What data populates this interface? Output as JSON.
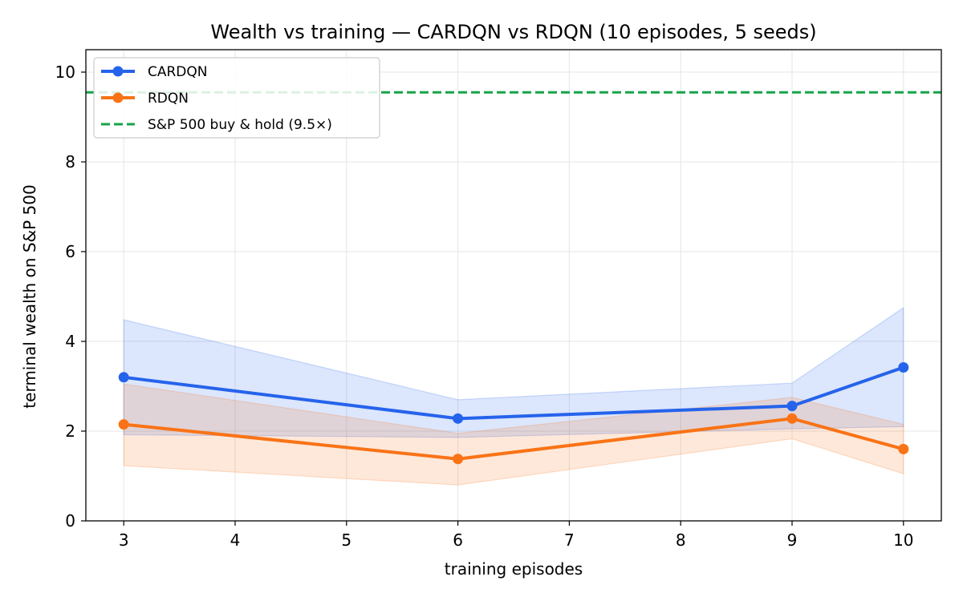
{
  "chart_data": {
    "type": "line",
    "title": "Wealth vs training — CARDQN vs RDQN (10 episodes, 5 seeds)",
    "xlabel": "training episodes",
    "ylabel": "terminal wealth on S&P 500",
    "xlim": [
      2.66,
      10.34
    ],
    "ylim": [
      0,
      10.5
    ],
    "xticks": [
      3,
      4,
      5,
      6,
      7,
      8,
      9,
      10
    ],
    "yticks": [
      0,
      2,
      4,
      6,
      8,
      10
    ],
    "grid": true,
    "legend_position": "top-left",
    "x": [
      3,
      6,
      9,
      10
    ],
    "series": [
      {
        "name": "CARDQN",
        "color": "#2563eb",
        "values": [
          3.2,
          2.28,
          2.56,
          3.42
        ],
        "band_low": [
          1.92,
          1.86,
          2.05,
          2.1
        ],
        "band_high": [
          4.48,
          2.7,
          3.07,
          4.75
        ]
      },
      {
        "name": "RDQN",
        "color": "#f97316",
        "values": [
          2.15,
          1.38,
          2.28,
          1.6
        ],
        "band_low": [
          1.23,
          0.8,
          1.83,
          1.05
        ],
        "band_high": [
          3.05,
          1.95,
          2.75,
          2.15
        ]
      }
    ],
    "reference_lines": [
      {
        "name": "S&P 500 buy & hold (9.5×)",
        "y": 9.55,
        "color": "#16a34a",
        "style": "dashed"
      }
    ]
  }
}
